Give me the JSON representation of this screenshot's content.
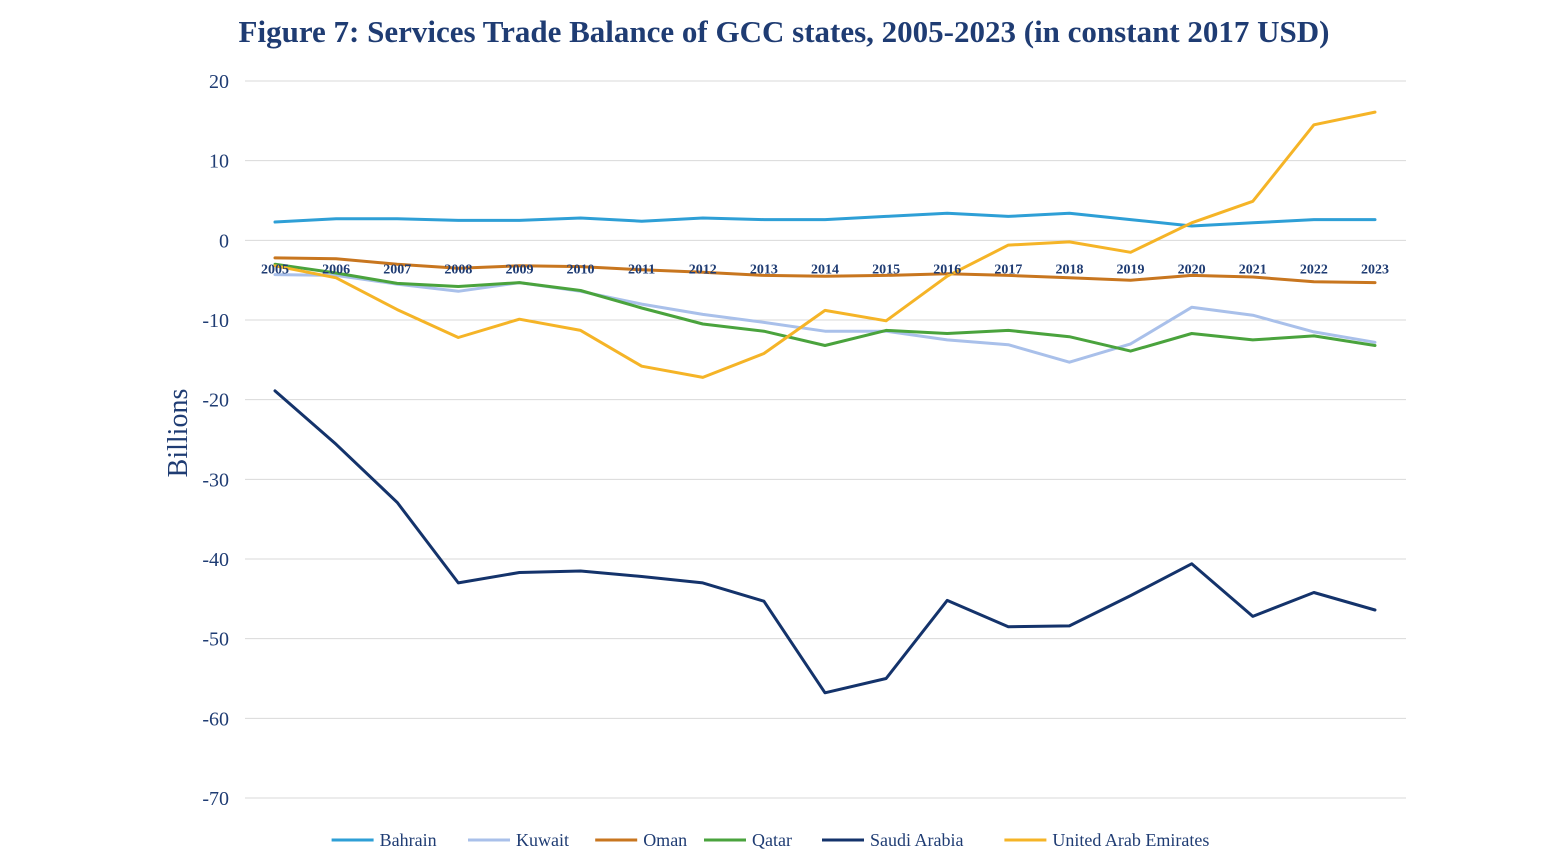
{
  "chart_data": {
    "type": "line",
    "title": "Figure 7: Services Trade Balance of GCC states, 2005-2023 (in constant 2017 USD)",
    "xlabel": "",
    "ylabel": "Billions",
    "ylim": [
      -70,
      20
    ],
    "yticks": [
      20,
      10,
      0,
      -10,
      -20,
      -30,
      -40,
      -50,
      -60,
      -70
    ],
    "grid": true,
    "legend_position": "bottom",
    "categories": [
      "2005",
      "2006",
      "2007",
      "2008",
      "2009",
      "2010",
      "2011",
      "2012",
      "2013",
      "2014",
      "2015",
      "2016",
      "2017",
      "2018",
      "2019",
      "2020",
      "2021",
      "2022",
      "2023"
    ],
    "series": [
      {
        "name": "Bahrain",
        "color": "#2e9fd6",
        "values": [
          2.3,
          2.7,
          2.7,
          2.5,
          2.5,
          2.8,
          2.4,
          2.8,
          2.6,
          2.6,
          3.0,
          3.4,
          3.0,
          3.4,
          2.6,
          1.8,
          2.2,
          2.6,
          2.6
        ]
      },
      {
        "name": "Kuwait",
        "color": "#a9c0ea",
        "values": [
          -4.3,
          -4.4,
          -5.5,
          -6.4,
          -5.3,
          -6.4,
          -8.0,
          -9.3,
          -10.3,
          -11.4,
          -11.4,
          -12.5,
          -13.1,
          -15.3,
          -13.0,
          -8.4,
          -9.4,
          -11.5,
          -12.8
        ]
      },
      {
        "name": "Oman",
        "color": "#c8761f",
        "values": [
          -2.2,
          -2.3,
          -3.0,
          -3.5,
          -3.2,
          -3.3,
          -3.7,
          -4.0,
          -4.4,
          -4.5,
          -4.4,
          -4.2,
          -4.4,
          -4.7,
          -5.0,
          -4.4,
          -4.6,
          -5.2,
          -5.3
        ]
      },
      {
        "name": "Qatar",
        "color": "#4aa33d",
        "values": [
          -3.0,
          -4.1,
          -5.4,
          -5.8,
          -5.3,
          -6.3,
          -8.5,
          -10.5,
          -11.4,
          -13.2,
          -11.3,
          -11.7,
          -11.3,
          -12.1,
          -13.9,
          -11.7,
          -12.5,
          -12.0,
          -13.2
        ]
      },
      {
        "name": "Saudi Arabia",
        "color": "#14336b",
        "values": [
          -18.9,
          -25.6,
          -32.9,
          -43.0,
          -41.7,
          -41.5,
          -42.2,
          -43.0,
          -45.3,
          -56.8,
          -55.0,
          -45.2,
          -48.5,
          -48.4,
          -44.6,
          -40.6,
          -47.2,
          -44.2,
          -46.4
        ]
      },
      {
        "name": "United Arab Emirates",
        "color": "#f5b427",
        "values": [
          -3.2,
          -4.7,
          -8.7,
          -12.2,
          -9.9,
          -11.3,
          -15.8,
          -17.2,
          -14.2,
          -8.8,
          -10.1,
          -4.5,
          -0.6,
          -0.2,
          -1.5,
          2.2,
          4.9,
          14.5,
          16.1
        ]
      }
    ]
  }
}
